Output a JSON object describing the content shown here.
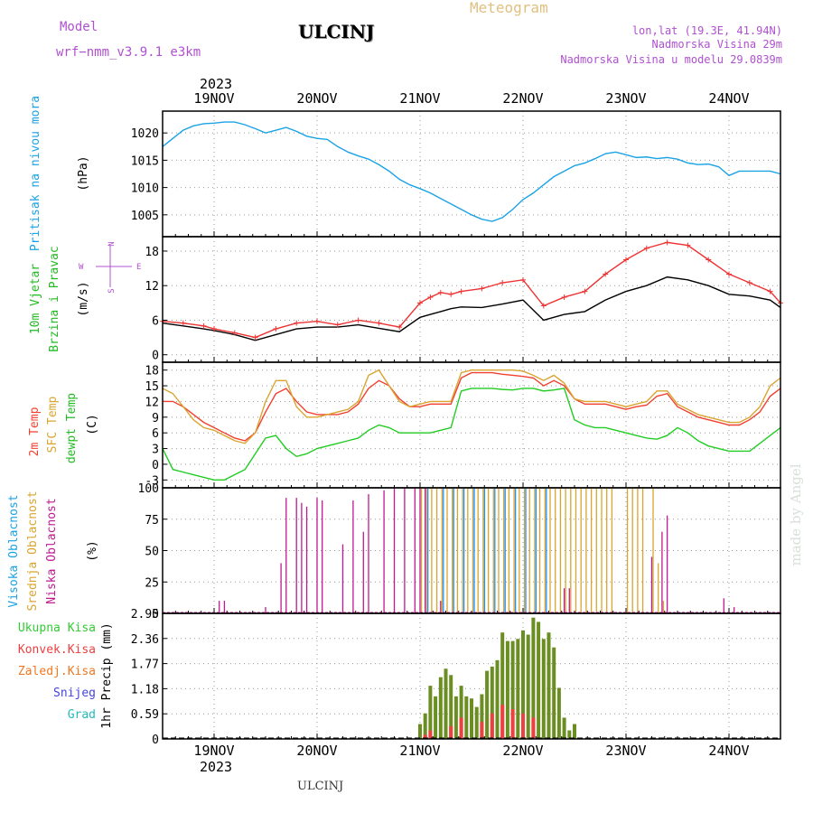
{
  "header": {
    "model_label": "Model",
    "model_name": "wrf−nmm_v3.9.1  e3km",
    "station": "ULCINJ",
    "product": "Meteogram",
    "lonlat": "lon,lat (19.3E, 41.94N)",
    "altitude": "Nadmorska Visina 29m",
    "model_altitude": "Nadmorska Visina u modelu 29.0839m"
  },
  "footer": {
    "station": "ULCINJ",
    "watermark": "made by Angel"
  },
  "time_axis": {
    "year": "2023",
    "days": [
      "19NOV",
      "20NOV",
      "21NOV",
      "22NOV",
      "23NOV",
      "24NOV"
    ]
  },
  "colors": {
    "pressure": "#1aa3e6",
    "temp2m": "#f04030",
    "sfc_temp": "#d9a530",
    "dewpoint": "#22cc22",
    "cloud_high": "#1e90ff",
    "cloud_mid": "#d9a530",
    "cloud_low": "#c01890",
    "precip_total": "#33cc33",
    "precip_conv": "#ee4040",
    "precip_frz": "#ee7722",
    "snow": "#4444dd",
    "hail": "#22bbbb",
    "wind_speed": "#000000",
    "wind_gust": "#ee3333"
  },
  "panels": {
    "pressure": {
      "label": "Pritisak na nivou mora",
      "unit": "(hPa)"
    },
    "wind": {
      "label1": "10m Vjetar",
      "label2": "Brzina i Pravac",
      "unit": "(m/s)",
      "compass_n": "N",
      "compass_s": "S",
      "compass_w": "W",
      "compass_e": "E"
    },
    "temp": {
      "label1": "2m Temp",
      "label2": "SFC Temp",
      "label3": "dewpt Temp",
      "unit": "(C)"
    },
    "cloud": {
      "label1": "Visoka Oblacnost",
      "label2": "Srednja Oblacnost",
      "label3": "Niska Oblacnost",
      "unit": "(%)"
    },
    "precip": {
      "legend": [
        "Ukupna Kisa",
        "Konvek.Kisa",
        "Zaledj.Kisa",
        "Snijeg",
        "Grad"
      ],
      "unit": "1hr Precip (mm)"
    }
  },
  "chart_data": [
    {
      "type": "line",
      "title": "Pritisak na nivou mora",
      "ylabel": "(hPa)",
      "ylim": [
        1001,
        1024
      ],
      "yticks": [
        1005,
        1010,
        1015,
        1020
      ],
      "xlim": [
        -0.5,
        5.5
      ],
      "grid": true,
      "series": [
        {
          "name": "Pritisak na nivou mora",
          "x": [
            -0.5,
            -0.4,
            -0.3,
            -0.2,
            -0.1,
            0,
            0.1,
            0.2,
            0.3,
            0.4,
            0.5,
            0.6,
            0.7,
            0.8,
            0.9,
            1.0,
            1.1,
            1.2,
            1.3,
            1.4,
            1.5,
            1.6,
            1.7,
            1.8,
            1.9,
            2.0,
            2.1,
            2.2,
            2.3,
            2.4,
            2.5,
            2.6,
            2.7,
            2.8,
            2.9,
            3.0,
            3.1,
            3.2,
            3.3,
            3.4,
            3.5,
            3.6,
            3.7,
            3.8,
            3.9,
            4.0,
            4.1,
            4.2,
            4.3,
            4.4,
            4.5,
            4.6,
            4.7,
            4.8,
            4.9,
            5.0,
            5.1,
            5.2,
            5.3,
            5.4,
            5.5
          ],
          "values": [
            1017.5,
            1019,
            1020.5,
            1021.3,
            1021.7,
            1021.8,
            1022,
            1022,
            1021.5,
            1020.8,
            1020,
            1020.5,
            1021,
            1020.3,
            1019.4,
            1019,
            1018.8,
            1017.5,
            1016.5,
            1015.8,
            1015.2,
            1014.2,
            1013,
            1011.5,
            1010.5,
            1009.8,
            1009,
            1008,
            1007,
            1006,
            1005,
            1004.2,
            1003.8,
            1004.5,
            1006,
            1007.8,
            1009,
            1010.5,
            1012,
            1013,
            1014,
            1014.5,
            1015.3,
            1016.2,
            1016.5,
            1016,
            1015.5,
            1015.6,
            1015.3,
            1015.5,
            1015.2,
            1014.5,
            1014.2,
            1014.3,
            1013.8,
            1012.2,
            1013,
            1013,
            1013,
            1013,
            1012.5
          ]
        }
      ]
    },
    {
      "type": "line",
      "title": "10m Vjetar Brzina i Pravac",
      "ylabel": "(m/s)",
      "ylim": [
        -1.3,
        20.5
      ],
      "yticks": [
        0,
        6,
        12,
        18
      ],
      "xlim": [
        -0.5,
        5.5
      ],
      "grid": true,
      "series": [
        {
          "name": "speed",
          "x": [
            -0.5,
            -0.3,
            -0.1,
            0,
            0.2,
            0.4,
            0.6,
            0.8,
            1.0,
            1.2,
            1.4,
            1.6,
            1.8,
            2.0,
            2.1,
            2.2,
            2.3,
            2.4,
            2.6,
            2.8,
            3.0,
            3.2,
            3.4,
            3.6,
            3.8,
            4.0,
            4.2,
            4.4,
            4.6,
            4.8,
            5.0,
            5.2,
            5.4,
            5.5
          ],
          "values": [
            5.5,
            5,
            4.5,
            4.2,
            3.5,
            2.5,
            3.5,
            4.5,
            4.8,
            4.8,
            5.2,
            4.6,
            4,
            6.5,
            7,
            7.5,
            8,
            8.3,
            8.2,
            8.8,
            9.5,
            6,
            7,
            7.5,
            9.5,
            11,
            12,
            13.5,
            13,
            12,
            10.5,
            10.2,
            9.5,
            8.2
          ]
        },
        {
          "name": "gust",
          "x": [
            -0.5,
            -0.3,
            -0.1,
            0,
            0.2,
            0.4,
            0.6,
            0.8,
            1.0,
            1.2,
            1.4,
            1.6,
            1.8,
            2.0,
            2.1,
            2.2,
            2.3,
            2.4,
            2.6,
            2.8,
            3.0,
            3.2,
            3.4,
            3.6,
            3.8,
            4.0,
            4.2,
            4.4,
            4.6,
            4.8,
            5.0,
            5.2,
            5.4,
            5.5
          ],
          "values": [
            5.8,
            5.5,
            5,
            4.5,
            3.8,
            3,
            4.5,
            5.5,
            5.8,
            5.2,
            6,
            5.5,
            4.8,
            9,
            10,
            10.8,
            10.5,
            11,
            11.5,
            12.5,
            13,
            8.5,
            10,
            11,
            14,
            16.5,
            18.5,
            19.5,
            19,
            16.5,
            14,
            12.5,
            11,
            9
          ]
        }
      ]
    },
    {
      "type": "line",
      "title": "Temp",
      "ylabel": "(C)",
      "ylim": [
        -4.5,
        19.5
      ],
      "yticks": [
        -3,
        0,
        3,
        6,
        9,
        12,
        15,
        18
      ],
      "xlim": [
        -0.5,
        5.5
      ],
      "grid": true,
      "series": [
        {
          "name": "2m Temp",
          "x": [
            -0.5,
            -0.4,
            -0.3,
            -0.2,
            -0.1,
            0,
            0.1,
            0.2,
            0.3,
            0.4,
            0.5,
            0.6,
            0.7,
            0.8,
            0.9,
            1.0,
            1.1,
            1.2,
            1.3,
            1.4,
            1.5,
            1.6,
            1.7,
            1.8,
            1.9,
            2.0,
            2.1,
            2.2,
            2.3,
            2.4,
            2.5,
            2.6,
            2.7,
            2.8,
            2.9,
            3.0,
            3.1,
            3.2,
            3.3,
            3.4,
            3.5,
            3.6,
            3.7,
            3.8,
            3.9,
            4.0,
            4.1,
            4.2,
            4.3,
            4.4,
            4.5,
            4.6,
            4.7,
            4.8,
            4.9,
            5.0,
            5.1,
            5.2,
            5.3,
            5.4,
            5.5
          ],
          "values": [
            12,
            12,
            11,
            9.5,
            8,
            7,
            6,
            5,
            4.5,
            6,
            10,
            13.5,
            14.5,
            12,
            10,
            9.5,
            9.5,
            9.5,
            10,
            11.5,
            14.5,
            16,
            15,
            12.5,
            11,
            11,
            11.5,
            11.5,
            11.5,
            16.5,
            17.5,
            17.5,
            17.5,
            17.2,
            17,
            16.8,
            16.5,
            15,
            16,
            15,
            12.5,
            11.5,
            11.5,
            11.5,
            11,
            10.5,
            11,
            11.3,
            13,
            13.5,
            11,
            10,
            9,
            8.5,
            8,
            7.5,
            7.5,
            8.5,
            10,
            13,
            14.5
          ]
        },
        {
          "name": "SFC Temp",
          "x": [
            -0.5,
            -0.4,
            -0.3,
            -0.2,
            -0.1,
            0,
            0.1,
            0.2,
            0.3,
            0.4,
            0.5,
            0.6,
            0.7,
            0.8,
            0.9,
            1.0,
            1.1,
            1.2,
            1.3,
            1.4,
            1.5,
            1.6,
            1.7,
            1.8,
            1.9,
            2.0,
            2.1,
            2.2,
            2.3,
            2.4,
            2.5,
            2.6,
            2.7,
            2.8,
            2.9,
            3.0,
            3.1,
            3.2,
            3.3,
            3.4,
            3.5,
            3.6,
            3.7,
            3.8,
            3.9,
            4.0,
            4.1,
            4.2,
            4.3,
            4.4,
            4.5,
            4.6,
            4.7,
            4.8,
            4.9,
            5.0,
            5.1,
            5.2,
            5.3,
            5.4,
            5.5
          ],
          "values": [
            14.5,
            13.5,
            11,
            8.5,
            7,
            6.5,
            5.5,
            4.5,
            4,
            6,
            12,
            16,
            16,
            11,
            9,
            9,
            9.5,
            10,
            10.5,
            12,
            17,
            18,
            15,
            12,
            11,
            11.5,
            12,
            12,
            12,
            17.5,
            18,
            18,
            18,
            18,
            18,
            17.8,
            17,
            16,
            17,
            15.5,
            12.5,
            12,
            12,
            12,
            11.5,
            11,
            11.5,
            12,
            14,
            14,
            11.5,
            10.5,
            9.5,
            9,
            8.5,
            8,
            8,
            9,
            11,
            15,
            16.5
          ]
        },
        {
          "name": "dewpt Temp",
          "x": [
            -0.5,
            -0.4,
            -0.3,
            -0.2,
            -0.1,
            0,
            0.1,
            0.2,
            0.3,
            0.4,
            0.5,
            0.6,
            0.7,
            0.8,
            0.9,
            1.0,
            1.1,
            1.2,
            1.3,
            1.4,
            1.5,
            1.6,
            1.7,
            1.8,
            1.9,
            2.0,
            2.1,
            2.2,
            2.3,
            2.4,
            2.5,
            2.6,
            2.7,
            2.8,
            2.9,
            3.0,
            3.1,
            3.2,
            3.3,
            3.4,
            3.5,
            3.6,
            3.7,
            3.8,
            3.9,
            4.0,
            4.1,
            4.2,
            4.3,
            4.4,
            4.5,
            4.6,
            4.7,
            4.8,
            4.9,
            5.0,
            5.1,
            5.2,
            5.3,
            5.4,
            5.5
          ],
          "values": [
            3,
            -1,
            -1.5,
            -2,
            -2.5,
            -3,
            -3,
            -2,
            -1,
            2,
            5,
            5.5,
            3,
            1.5,
            2,
            3,
            3.5,
            4,
            4.5,
            5,
            6.5,
            7.5,
            7,
            6,
            6,
            6,
            6,
            6.5,
            7,
            14,
            14.5,
            14.5,
            14.5,
            14.3,
            14.2,
            14.5,
            14.5,
            14,
            14.2,
            14.5,
            8.5,
            7.5,
            7,
            7,
            6.5,
            6,
            5.5,
            5,
            4.8,
            5.5,
            7,
            6,
            4.5,
            3.5,
            3,
            2.5,
            2.5,
            2.5,
            4,
            5.5,
            7
          ]
        }
      ]
    },
    {
      "type": "bar",
      "title": "Oblacnost",
      "ylabel": "(%)",
      "ylim": [
        0,
        100
      ],
      "yticks": [
        0,
        25,
        50,
        75,
        100
      ],
      "xlim": [
        -0.5,
        5.5
      ],
      "grid": true,
      "series": [
        {
          "name": "Niska Oblacnost",
          "x": [
            0.05,
            0.1,
            0.5,
            0.65,
            0.7,
            0.8,
            0.85,
            0.9,
            1.0,
            1.05,
            1.25,
            1.35,
            1.45,
            1.5,
            1.65,
            1.75,
            1.85,
            1.95,
            2.0,
            2.05,
            2.2,
            3.4,
            3.45,
            4.25,
            4.35,
            4.4,
            4.95,
            5.05
          ],
          "values": [
            10,
            10,
            5,
            40,
            92,
            92,
            88,
            85,
            92,
            90,
            55,
            90,
            65,
            95,
            98,
            100,
            100,
            100,
            100,
            100,
            10,
            20,
            20,
            45,
            65,
            78,
            12,
            5
          ]
        },
        {
          "name": "Srednja Oblacnost",
          "x": [
            2.0,
            2.05,
            2.1,
            2.15,
            2.2,
            2.25,
            2.3,
            2.35,
            2.4,
            2.45,
            2.5,
            2.55,
            2.6,
            2.65,
            2.7,
            2.75,
            2.8,
            2.85,
            2.9,
            2.95,
            3.0,
            3.05,
            3.1,
            3.15,
            3.2,
            3.25,
            3.3,
            3.35,
            3.4,
            3.45,
            3.5,
            3.55,
            3.6,
            3.65,
            3.7,
            3.75,
            3.8,
            3.85,
            4.0,
            4.05,
            4.1,
            4.15,
            4.25,
            4.3,
            4.35
          ],
          "values": [
            100,
            100,
            100,
            100,
            100,
            100,
            100,
            100,
            100,
            100,
            100,
            100,
            100,
            100,
            100,
            100,
            100,
            100,
            100,
            100,
            100,
            100,
            100,
            100,
            100,
            100,
            100,
            100,
            100,
            100,
            100,
            100,
            100,
            100,
            100,
            100,
            100,
            100,
            100,
            100,
            100,
            100,
            100,
            40,
            10
          ]
        },
        {
          "name": "Visoka Oblacnost",
          "x": [
            2.05,
            2.2,
            2.3,
            2.4,
            2.5,
            2.6,
            2.7,
            2.8,
            2.9,
            3.0,
            3.1,
            3.2
          ],
          "values": [
            100,
            100,
            100,
            100,
            100,
            100,
            100,
            100,
            100,
            100,
            100,
            100
          ]
        }
      ]
    },
    {
      "type": "bar",
      "title": "1hr Precip",
      "ylabel": "1hr Precip (mm)",
      "ylim": [
        0,
        2.95
      ],
      "yticks": [
        0,
        0.59,
        1.18,
        1.77,
        2.36,
        2.95
      ],
      "xlim": [
        -0.5,
        5.5
      ],
      "grid": true,
      "series": [
        {
          "name": "Ukupna Kisa",
          "x": [
            2.0,
            2.05,
            2.1,
            2.15,
            2.2,
            2.25,
            2.3,
            2.35,
            2.4,
            2.45,
            2.5,
            2.55,
            2.6,
            2.65,
            2.7,
            2.75,
            2.8,
            2.85,
            2.9,
            2.95,
            3.0,
            3.05,
            3.1,
            3.15,
            3.2,
            3.25,
            3.3,
            3.35,
            3.4,
            3.45,
            3.5,
            3.55,
            3.6
          ],
          "values": [
            0.35,
            0.6,
            1.25,
            1.0,
            1.45,
            1.65,
            1.5,
            1.0,
            1.25,
            1.0,
            0.95,
            0.75,
            1.05,
            1.6,
            1.7,
            1.85,
            2.5,
            2.3,
            2.3,
            2.35,
            2.55,
            2.45,
            2.85,
            2.75,
            2.35,
            2.5,
            2.15,
            1.2,
            0.5,
            0.2,
            0.35,
            0,
            0
          ]
        },
        {
          "name": "Konvek.Kisa",
          "x": [
            2.05,
            2.1,
            2.3,
            2.4,
            2.6,
            2.7,
            2.8,
            2.9,
            3.0,
            3.1
          ],
          "values": [
            0.1,
            0.2,
            0.3,
            0.5,
            0.4,
            0.6,
            0.8,
            0.7,
            0.6,
            0.5
          ]
        }
      ]
    }
  ]
}
